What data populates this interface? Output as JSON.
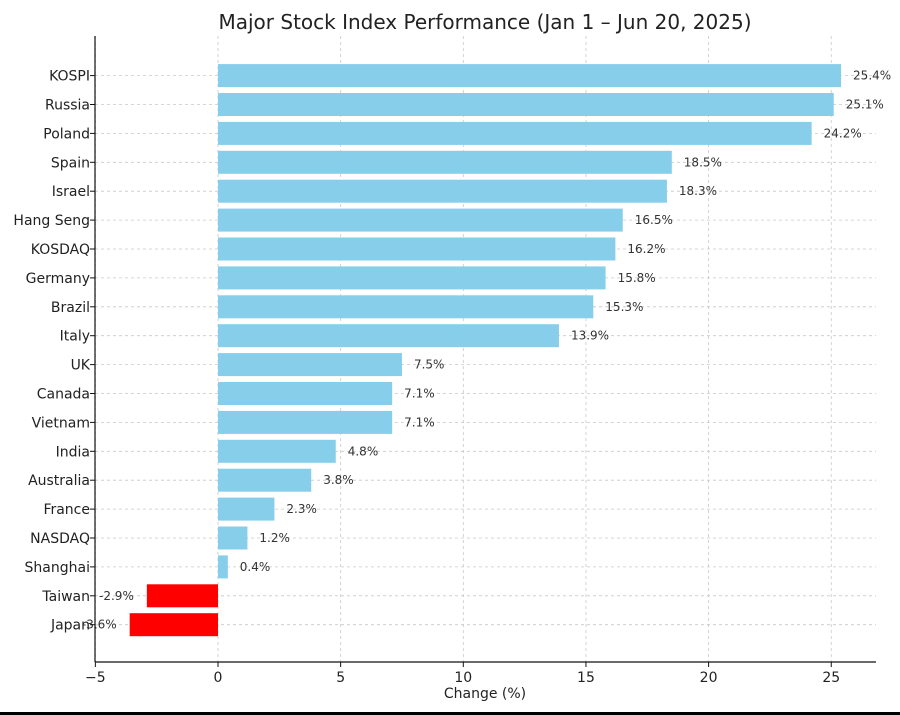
{
  "chart_data": {
    "type": "bar",
    "orientation": "horizontal",
    "title": "Major Stock Index Performance (Jan 1 – Jun 20, 2025)",
    "xlabel": "Change (%)",
    "ylabel": "",
    "xlim": [
      -5,
      27
    ],
    "xticks": [
      -5,
      0,
      5,
      10,
      15,
      20,
      25
    ],
    "xtick_labels": [
      "−5",
      "0",
      "5",
      "10",
      "15",
      "20",
      "25"
    ],
    "grid": true,
    "categories": [
      "KOSPI",
      "Russia",
      "Poland",
      "Spain",
      "Israel",
      "Hang Seng",
      "KOSDAQ",
      "Germany",
      "Brazil",
      "Italy",
      "UK",
      "Canada",
      "Vietnam",
      "India",
      "Australia",
      "France",
      "NASDAQ",
      "Shanghai",
      "Taiwan",
      "Japan"
    ],
    "values": [
      25.4,
      25.1,
      24.2,
      18.5,
      18.3,
      16.5,
      16.2,
      15.8,
      15.3,
      13.9,
      7.5,
      7.1,
      7.1,
      4.8,
      3.8,
      2.3,
      1.2,
      0.4,
      -2.9,
      -3.6
    ],
    "data_labels": [
      "25.4%",
      "25.1%",
      "24.2%",
      "18.5%",
      "18.3%",
      "16.5%",
      "16.2%",
      "15.8%",
      "15.3%",
      "13.9%",
      "7.5%",
      "7.1%",
      "7.1%",
      "4.8%",
      "3.8%",
      "2.3%",
      "1.2%",
      "0.4%",
      "-2.9%",
      "-3.6%"
    ],
    "colors": {
      "positive": "#87ceeb",
      "negative": "#ff0000"
    }
  }
}
